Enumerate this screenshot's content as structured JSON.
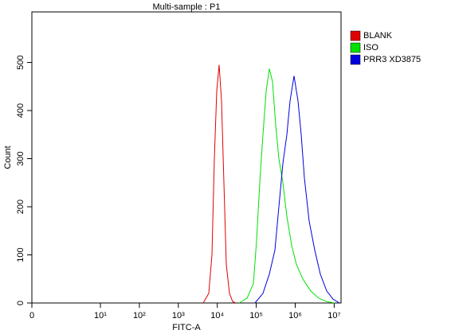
{
  "chart_data": {
    "type": "line",
    "title": "Multi-sample : P1",
    "x_label": "FITC-A",
    "y_label": "Count",
    "xscale": "biexponential-log",
    "xlim": [
      0,
      15000000
    ],
    "xticks": [
      0,
      {
        "value": 10,
        "label": "10¹"
      },
      {
        "value": 100,
        "label": "10²"
      },
      {
        "value": 1000,
        "label": "10³"
      },
      {
        "value": 10000,
        "label": "10⁴"
      },
      {
        "value": 100000,
        "label": "10⁵"
      },
      {
        "value": 1000000,
        "label": "10⁶"
      },
      {
        "value": 10000000,
        "label": "10⁷"
      }
    ],
    "ylim": [
      0,
      605
    ],
    "yticks": [
      0,
      100,
      200,
      300,
      400,
      500
    ],
    "legend": "top-right",
    "series": [
      {
        "name": "BLANK",
        "color": "#e00000",
        "x": [
          4345,
          6030,
          7290,
          8400,
          9680,
          11150,
          12830,
          14790,
          17020,
          20560,
          24830,
          29930
        ],
        "values": [
          0,
          20,
          100,
          300,
          440,
          495,
          420,
          250,
          80,
          20,
          3,
          0
        ]
      },
      {
        "name": "ISO",
        "color": "#00e000",
        "x": [
          36140,
          57900,
          84400,
          101900,
          123000,
          148600,
          179400,
          216400,
          261300,
          315500,
          381000,
          482000,
          610000,
          809000,
          1073000,
          1564000,
          2504000,
          4010000,
          6430000,
          10280000
        ],
        "values": [
          0,
          10,
          40,
          130,
          250,
          350,
          440,
          487,
          460,
          370,
          300,
          250,
          180,
          120,
          80,
          50,
          25,
          10,
          3,
          0
        ]
      },
      {
        "name": "PRR3 XD3875",
        "color": "#0000e0",
        "x": [
          92700,
          148600,
          216400,
          301000,
          381000,
          482000,
          610000,
          736000,
          931000,
          1178000,
          1422000,
          1718000,
          2280000,
          3170000,
          4400000,
          6430000,
          9360000,
          13650000
        ],
        "values": [
          0,
          20,
          60,
          110,
          200,
          290,
          350,
          420,
          472,
          420,
          350,
          260,
          170,
          110,
          60,
          25,
          8,
          0
        ]
      }
    ]
  }
}
